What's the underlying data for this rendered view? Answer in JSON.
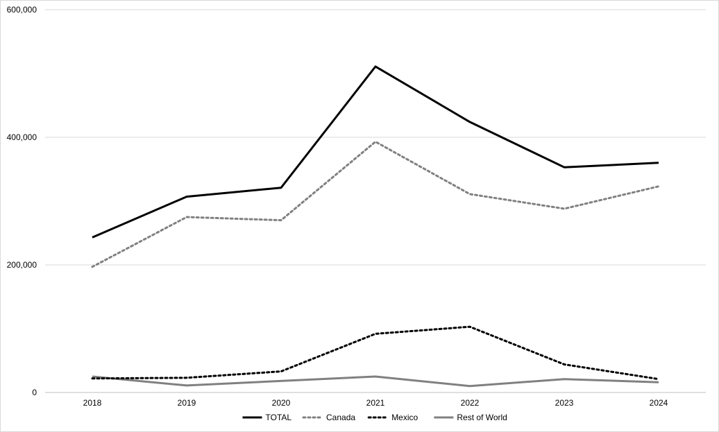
{
  "chart_data": {
    "type": "line",
    "categories": [
      "2018",
      "2019",
      "2020",
      "2021",
      "2022",
      "2023",
      "2024"
    ],
    "ylim": [
      0,
      600000
    ],
    "yticks": [
      0,
      200000,
      400000,
      600000
    ],
    "ytick_labels": [
      "0",
      "200,000",
      "400,000",
      "600,000"
    ],
    "grid": true,
    "legend_position": "bottom",
    "series": [
      {
        "name": "TOTAL",
        "values": [
          243000,
          307000,
          321000,
          511000,
          424000,
          353000,
          360000
        ],
        "color": "#000000",
        "style": "solid"
      },
      {
        "name": "Canada",
        "values": [
          197000,
          275000,
          270000,
          393000,
          311000,
          288000,
          323000
        ],
        "color": "#808080",
        "style": "dotted"
      },
      {
        "name": "Mexico",
        "values": [
          22000,
          23000,
          33000,
          92000,
          103000,
          44000,
          21000
        ],
        "color": "#000000",
        "style": "dotted"
      },
      {
        "name": "Rest of World",
        "values": [
          25000,
          11000,
          18000,
          25000,
          10000,
          21000,
          16000
        ],
        "color": "#808080",
        "style": "solid"
      }
    ]
  }
}
